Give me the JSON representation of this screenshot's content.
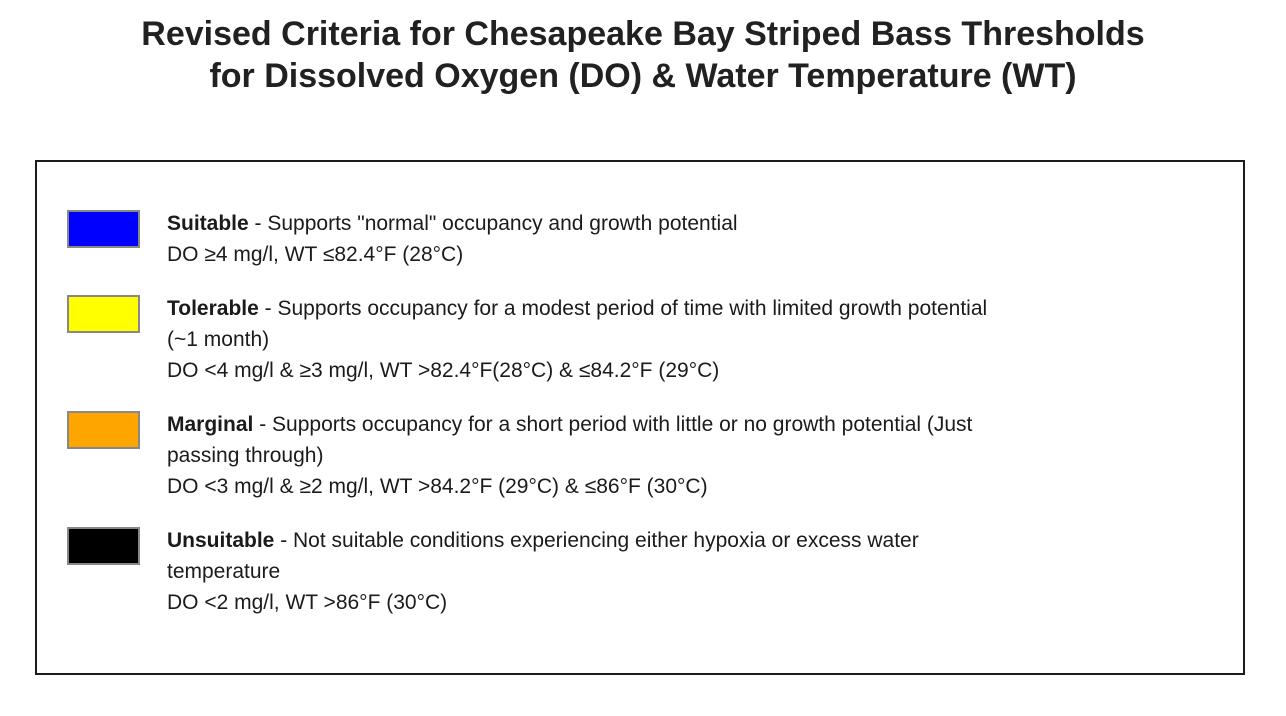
{
  "title": {
    "line1": "Revised Criteria for Chesapeake Bay Striped Bass Thresholds",
    "line2": "for Dissolved Oxygen (DO) & Water Temperature (WT)"
  },
  "legend": {
    "box_border_color": "#1c1c1c",
    "swatch_border_color": "#888888",
    "items": [
      {
        "name": "Suitable",
        "color": "#0000ff",
        "desc_first": " - Supports \"normal\" occupancy and growth potential",
        "criteria": "DO ≥4 mg/l, WT ≤82.4°F (28°C)"
      },
      {
        "name": "Tolerable",
        "color": "#ffff00",
        "desc_first": " - Supports occupancy for a modest period of time with limited growth potential",
        "desc_cont": "(~1 month)",
        "criteria": "DO <4 mg/l & ≥3 mg/l, WT >82.4°F(28°C) & ≤84.2°F (29°C)"
      },
      {
        "name": "Marginal",
        "color": "#ffa500",
        "desc_first": " - Supports occupancy for a short period with little or no growth potential (Just",
        "desc_cont": "passing through)",
        "criteria": "DO <3 mg/l & ≥2 mg/l, WT >84.2°F (29°C) & ≤86°F (30°C)"
      },
      {
        "name": "Unsuitable",
        "color": "#000000",
        "desc_first": " - Not suitable conditions experiencing either hypoxia or excess water",
        "desc_cont": "temperature",
        "criteria": "DO <2 mg/l, WT >86°F (30°C)"
      }
    ]
  }
}
